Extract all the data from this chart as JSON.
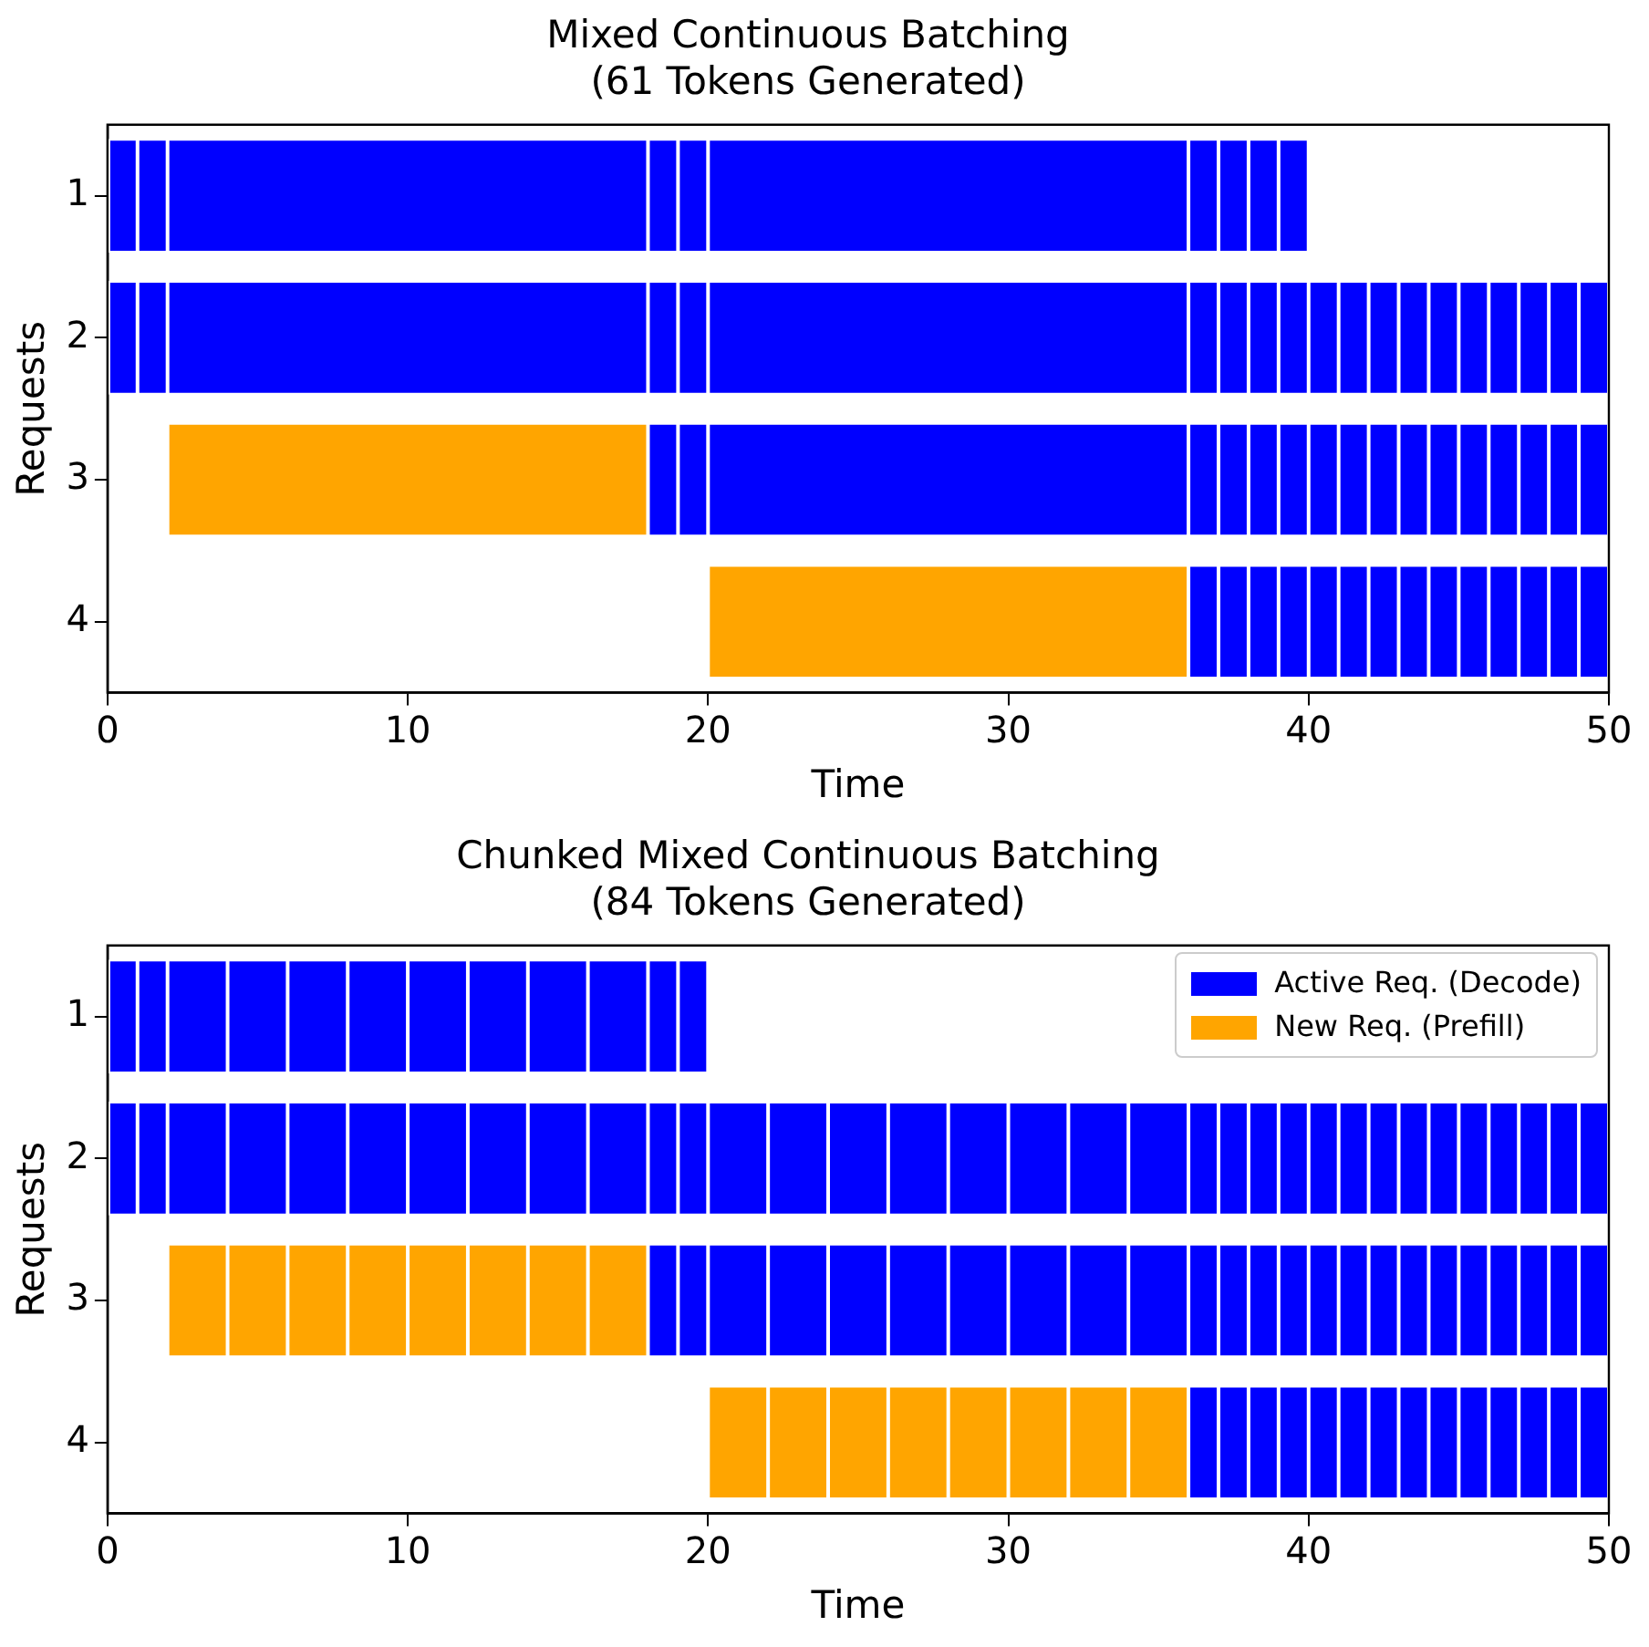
{
  "chart_data": [
    {
      "type": "bar",
      "orientation": "horizontal",
      "title": "Mixed Continuous Batching\n(61 Tokens Generated)",
      "xlabel": "Time",
      "ylabel": "Requests",
      "categories": [
        "1",
        "2",
        "3",
        "4"
      ],
      "xlim": [
        0,
        50
      ],
      "xticks": [
        0,
        10,
        20,
        30,
        40,
        50
      ],
      "grid": false,
      "legend": false,
      "series": [
        {
          "color": "#ffa500",
          "base": [
            null,
            null,
            2,
            20
          ],
          "values": [
            null,
            null,
            16,
            16
          ]
        },
        {
          "color": "#0000ff",
          "base": [
            0,
            0,
            18,
            36
          ],
          "values": [
            1,
            1,
            1,
            1
          ]
        },
        {
          "color": "#0000ff",
          "base": [
            1,
            1,
            19,
            37
          ],
          "values": [
            1,
            1,
            1,
            1
          ]
        },
        {
          "color": "#0000ff",
          "base": [
            2,
            2,
            20,
            38
          ],
          "values": [
            16,
            16,
            16,
            1
          ]
        },
        {
          "color": "#0000ff",
          "base": [
            18,
            18,
            36,
            39
          ],
          "values": [
            1,
            1,
            1,
            1
          ]
        },
        {
          "color": "#0000ff",
          "base": [
            19,
            19,
            37,
            40
          ],
          "values": [
            1,
            1,
            1,
            1
          ]
        },
        {
          "color": "#0000ff",
          "base": [
            20,
            20,
            38,
            41
          ],
          "values": [
            16,
            16,
            1,
            1
          ]
        },
        {
          "color": "#0000ff",
          "base": [
            36,
            36,
            39,
            42
          ],
          "values": [
            1,
            1,
            1,
            1
          ]
        },
        {
          "color": "#0000ff",
          "base": [
            37,
            37,
            40,
            43
          ],
          "values": [
            1,
            1,
            1,
            1
          ]
        },
        {
          "color": "#0000ff",
          "base": [
            38,
            38,
            41,
            44
          ],
          "values": [
            1,
            1,
            1,
            1
          ]
        },
        {
          "color": "#0000ff",
          "base": [
            39,
            39,
            42,
            45
          ],
          "values": [
            1,
            1,
            1,
            1
          ]
        },
        {
          "color": "#0000ff",
          "base": [
            null,
            40,
            43,
            46
          ],
          "values": [
            null,
            1,
            1,
            1
          ]
        },
        {
          "color": "#0000ff",
          "base": [
            null,
            41,
            44,
            47
          ],
          "values": [
            null,
            1,
            1,
            1
          ]
        },
        {
          "color": "#0000ff",
          "base": [
            null,
            42,
            45,
            48
          ],
          "values": [
            null,
            1,
            1,
            1
          ]
        },
        {
          "color": "#0000ff",
          "base": [
            null,
            43,
            46,
            49
          ],
          "values": [
            null,
            1,
            1,
            1
          ]
        },
        {
          "color": "#0000ff",
          "base": [
            null,
            44,
            47,
            null
          ],
          "values": [
            null,
            1,
            1,
            null
          ]
        },
        {
          "color": "#0000ff",
          "base": [
            null,
            45,
            48,
            null
          ],
          "values": [
            null,
            1,
            1,
            null
          ]
        },
        {
          "color": "#0000ff",
          "base": [
            null,
            46,
            49,
            null
          ],
          "values": [
            null,
            1,
            1,
            null
          ]
        },
        {
          "color": "#0000ff",
          "base": [
            null,
            47,
            null,
            null
          ],
          "values": [
            null,
            1,
            null,
            null
          ]
        },
        {
          "color": "#0000ff",
          "base": [
            null,
            48,
            null,
            null
          ],
          "values": [
            null,
            1,
            null,
            null
          ]
        },
        {
          "color": "#0000ff",
          "base": [
            null,
            49,
            null,
            null
          ],
          "values": [
            null,
            1,
            null,
            null
          ]
        }
      ]
    },
    {
      "type": "bar",
      "orientation": "horizontal",
      "title": "Chunked Mixed Continuous Batching\n(84 Tokens Generated)",
      "xlabel": "Time",
      "ylabel": "Requests",
      "categories": [
        "1",
        "2",
        "3",
        "4"
      ],
      "xlim": [
        0,
        50
      ],
      "xticks": [
        0,
        10,
        20,
        30,
        40,
        50
      ],
      "grid": false,
      "legend": "top right",
      "series": [
        {
          "name": "Active Req. (Decode)",
          "color": "#0000ff",
          "base": [
            0,
            0,
            18,
            36
          ],
          "values": [
            1,
            1,
            1,
            1
          ]
        },
        {
          "color": "#0000ff",
          "base": [
            1,
            1,
            19,
            37
          ],
          "values": [
            1,
            1,
            1,
            1
          ]
        },
        {
          "color": "#0000ff",
          "base": [
            2,
            2,
            20,
            38
          ],
          "values": [
            2,
            2,
            2,
            1
          ]
        },
        {
          "color": "#0000ff",
          "base": [
            4,
            4,
            22,
            39
          ],
          "values": [
            2,
            2,
            2,
            1
          ]
        },
        {
          "color": "#0000ff",
          "base": [
            6,
            6,
            24,
            40
          ],
          "values": [
            2,
            2,
            2,
            1
          ]
        },
        {
          "color": "#0000ff",
          "base": [
            8,
            8,
            26,
            41
          ],
          "values": [
            2,
            2,
            2,
            1
          ]
        },
        {
          "color": "#0000ff",
          "base": [
            10,
            10,
            28,
            42
          ],
          "values": [
            2,
            2,
            2,
            1
          ]
        },
        {
          "color": "#0000ff",
          "base": [
            12,
            12,
            30,
            43
          ],
          "values": [
            2,
            2,
            2,
            1
          ]
        },
        {
          "color": "#0000ff",
          "base": [
            14,
            14,
            32,
            44
          ],
          "values": [
            2,
            2,
            2,
            1
          ]
        },
        {
          "color": "#0000ff",
          "base": [
            16,
            16,
            34,
            45
          ],
          "values": [
            2,
            2,
            2,
            1
          ]
        },
        {
          "color": "#0000ff",
          "base": [
            18,
            18,
            36,
            46
          ],
          "values": [
            1,
            1,
            1,
            1
          ]
        },
        {
          "color": "#0000ff",
          "base": [
            19,
            19,
            37,
            47
          ],
          "values": [
            1,
            1,
            1,
            1
          ]
        },
        {
          "color": "#0000ff",
          "base": [
            null,
            20,
            38,
            48
          ],
          "values": [
            null,
            2,
            1,
            1
          ]
        },
        {
          "color": "#0000ff",
          "base": [
            null,
            22,
            39,
            49
          ],
          "values": [
            null,
            2,
            1,
            1
          ]
        },
        {
          "color": "#0000ff",
          "base": [
            null,
            24,
            40,
            null
          ],
          "values": [
            null,
            2,
            1,
            null
          ]
        },
        {
          "color": "#0000ff",
          "base": [
            null,
            26,
            41,
            null
          ],
          "values": [
            null,
            2,
            1,
            null
          ]
        },
        {
          "color": "#0000ff",
          "base": [
            null,
            28,
            42,
            null
          ],
          "values": [
            null,
            2,
            1,
            null
          ]
        },
        {
          "color": "#0000ff",
          "base": [
            null,
            30,
            43,
            null
          ],
          "values": [
            null,
            2,
            1,
            null
          ]
        },
        {
          "color": "#0000ff",
          "base": [
            null,
            32,
            44,
            null
          ],
          "values": [
            null,
            2,
            1,
            null
          ]
        },
        {
          "color": "#0000ff",
          "base": [
            null,
            34,
            45,
            null
          ],
          "values": [
            null,
            2,
            1,
            null
          ]
        },
        {
          "color": "#0000ff",
          "base": [
            null,
            36,
            46,
            null
          ],
          "values": [
            null,
            1,
            1,
            null
          ]
        },
        {
          "color": "#0000ff",
          "base": [
            null,
            37,
            47,
            null
          ],
          "values": [
            null,
            1,
            1,
            null
          ]
        },
        {
          "color": "#0000ff",
          "base": [
            null,
            38,
            48,
            null
          ],
          "values": [
            null,
            1,
            1,
            null
          ]
        },
        {
          "color": "#0000ff",
          "base": [
            null,
            39,
            49,
            null
          ],
          "values": [
            null,
            1,
            1,
            null
          ]
        },
        {
          "color": "#0000ff",
          "base": [
            null,
            40,
            null,
            null
          ],
          "values": [
            null,
            1,
            null,
            null
          ]
        },
        {
          "color": "#0000ff",
          "base": [
            null,
            41,
            null,
            null
          ],
          "values": [
            null,
            1,
            null,
            null
          ]
        },
        {
          "color": "#0000ff",
          "base": [
            null,
            42,
            null,
            null
          ],
          "values": [
            null,
            1,
            null,
            null
          ]
        },
        {
          "color": "#0000ff",
          "base": [
            null,
            43,
            null,
            null
          ],
          "values": [
            null,
            1,
            null,
            null
          ]
        },
        {
          "color": "#0000ff",
          "base": [
            null,
            44,
            null,
            null
          ],
          "values": [
            null,
            1,
            null,
            null
          ]
        },
        {
          "color": "#0000ff",
          "base": [
            null,
            45,
            null,
            null
          ],
          "values": [
            null,
            1,
            null,
            null
          ]
        },
        {
          "color": "#0000ff",
          "base": [
            null,
            46,
            null,
            null
          ],
          "values": [
            null,
            1,
            null,
            null
          ]
        },
        {
          "color": "#0000ff",
          "base": [
            null,
            47,
            null,
            null
          ],
          "values": [
            null,
            1,
            null,
            null
          ]
        },
        {
          "color": "#0000ff",
          "base": [
            null,
            48,
            null,
            null
          ],
          "values": [
            null,
            1,
            null,
            null
          ]
        },
        {
          "color": "#0000ff",
          "base": [
            null,
            49,
            null,
            null
          ],
          "values": [
            null,
            1,
            null,
            null
          ]
        },
        {
          "name": "New Req. (Prefill)",
          "color": "#ffa500",
          "base": [
            null,
            null,
            2,
            20
          ],
          "values": [
            null,
            null,
            2,
            2
          ]
        },
        {
          "color": "#ffa500",
          "base": [
            null,
            null,
            4,
            22
          ],
          "values": [
            null,
            null,
            2,
            2
          ]
        },
        {
          "color": "#ffa500",
          "base": [
            null,
            null,
            6,
            24
          ],
          "values": [
            null,
            null,
            2,
            2
          ]
        },
        {
          "color": "#ffa500",
          "base": [
            null,
            null,
            8,
            26
          ],
          "values": [
            null,
            null,
            2,
            2
          ]
        },
        {
          "color": "#ffa500",
          "base": [
            null,
            null,
            10,
            28
          ],
          "values": [
            null,
            null,
            2,
            2
          ]
        },
        {
          "color": "#ffa500",
          "base": [
            null,
            null,
            12,
            30
          ],
          "values": [
            null,
            null,
            2,
            2
          ]
        },
        {
          "color": "#ffa500",
          "base": [
            null,
            null,
            14,
            32
          ],
          "values": [
            null,
            null,
            2,
            2
          ]
        },
        {
          "color": "#ffa500",
          "base": [
            null,
            null,
            16,
            34
          ],
          "values": [
            null,
            null,
            2,
            2
          ]
        }
      ]
    }
  ]
}
